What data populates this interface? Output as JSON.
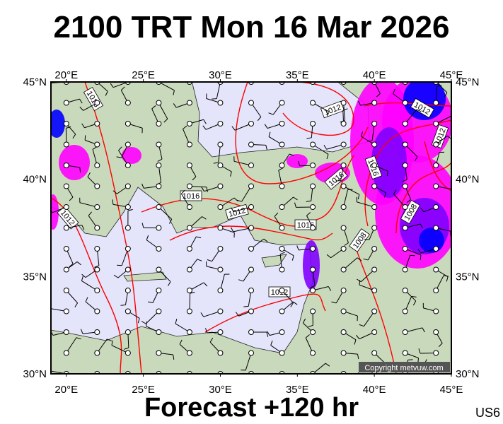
{
  "title": "2100 TRT Mon 16 Mar 2026",
  "footer": "Forecast +120 hr",
  "code": "US6",
  "copyright": "Copyright metvuw.com",
  "lon_labels": [
    "20°E",
    "25°E",
    "30°E",
    "35°E",
    "40°E",
    "45°E"
  ],
  "lat_labels": [
    "45°N",
    "40°N",
    "35°N",
    "30°N"
  ],
  "map_extent": {
    "lon": [
      19,
      45
    ],
    "lat": [
      30,
      45
    ]
  },
  "colors": {
    "isobar": "#ff0000",
    "sea": "#e4e4fb",
    "land": "#c9d9bb",
    "precip_light": "#ff00ff",
    "precip_mid": "#8000ff",
    "precip_heavy": "#0000ff"
  },
  "isobar_labels": [
    "1016",
    "1012",
    "1012",
    "1012",
    "1016",
    "1012",
    "1016",
    "1016",
    "1012",
    "1016",
    "1008",
    "1008",
    "1012"
  ]
}
